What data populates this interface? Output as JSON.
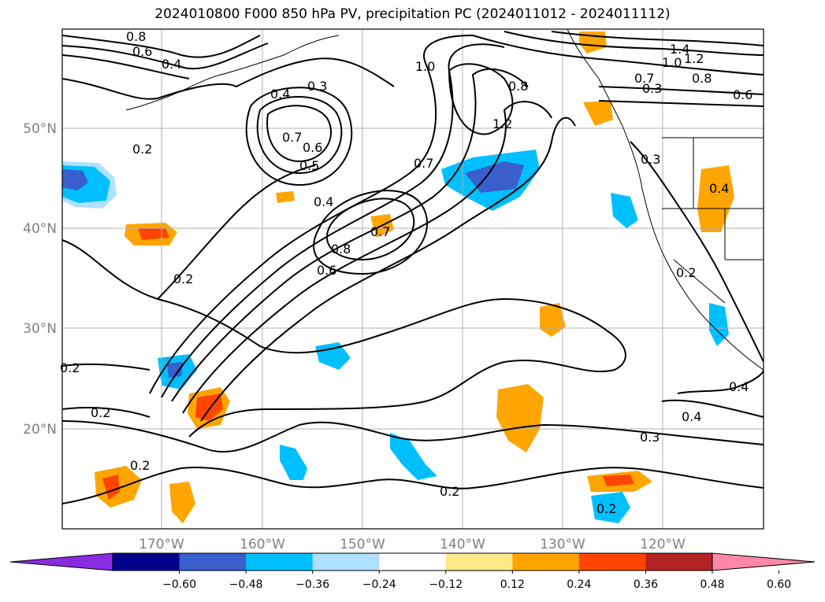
{
  "title": "2024010800 F000 850 hPa PV, precipitation PC (2024011012 - 2024011112)",
  "map": {
    "lat_labels": [
      "50°N",
      "40°N",
      "30°N",
      "20°N"
    ],
    "lon_labels": [
      "170°W",
      "160°W",
      "150°W",
      "140°W",
      "130°W",
      "120°W"
    ],
    "contour_labels": [
      "0.8",
      "0.6",
      "0.4",
      "0.3",
      "0.4",
      "0.7",
      "0.6",
      "0.5",
      "0.2",
      "0.4",
      "0.7",
      "0.8",
      "0.6",
      "1.0",
      "0.8",
      "1.2",
      "0.7",
      "1.4",
      "1.2",
      "1.0",
      "0.7",
      "0.8",
      "0.3",
      "0.6",
      "0.3",
      "0.4",
      "0.2",
      "0.2",
      "0.2",
      "0.2",
      "0.2",
      "0.3",
      "0.4",
      "0.4",
      "0.2",
      "0.2"
    ],
    "shading": {
      "positive_fill": "#ffa500",
      "positive_light": "#ffe98a",
      "positive_strong": "#ff4500",
      "negative_fill": "#00bfff",
      "negative_light": "#b0e0ff",
      "negative_strong": "#3a5fcd"
    },
    "contour_color": "#000000",
    "gridline_color": "#b0b0b0"
  },
  "colorbar": {
    "ticks": [
      "−0.60",
      "−0.48",
      "−0.36",
      "−0.24",
      "−0.12",
      "0.12",
      "0.24",
      "0.36",
      "0.48",
      "0.60"
    ],
    "colors": [
      "#8a2be2",
      "#00008b",
      "#3a5fcd",
      "#00bfff",
      "#b0e0ff",
      "#ffffff",
      "#ffe98a",
      "#ffa500",
      "#ff4500",
      "#b22222",
      "#ff88aa"
    ]
  }
}
